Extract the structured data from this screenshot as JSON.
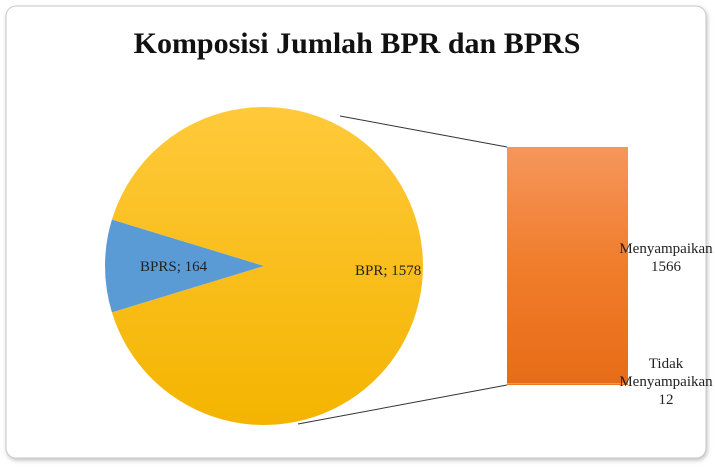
{
  "chart_data": {
    "type": "pie",
    "title": "Komposisi Jumlah BPR dan BPRS",
    "pie": {
      "values": [
        1578,
        164
      ],
      "value_labels": [
        "BPR; 1578",
        "BPRS; 164"
      ],
      "colors": [
        "#fdc012",
        "#5b9bd5"
      ]
    },
    "bar": {
      "categories": [
        "Menyampaikan",
        "Tidak Menyampaikan"
      ],
      "values": [
        1566,
        12
      ],
      "color": "#f07f2e"
    }
  }
}
